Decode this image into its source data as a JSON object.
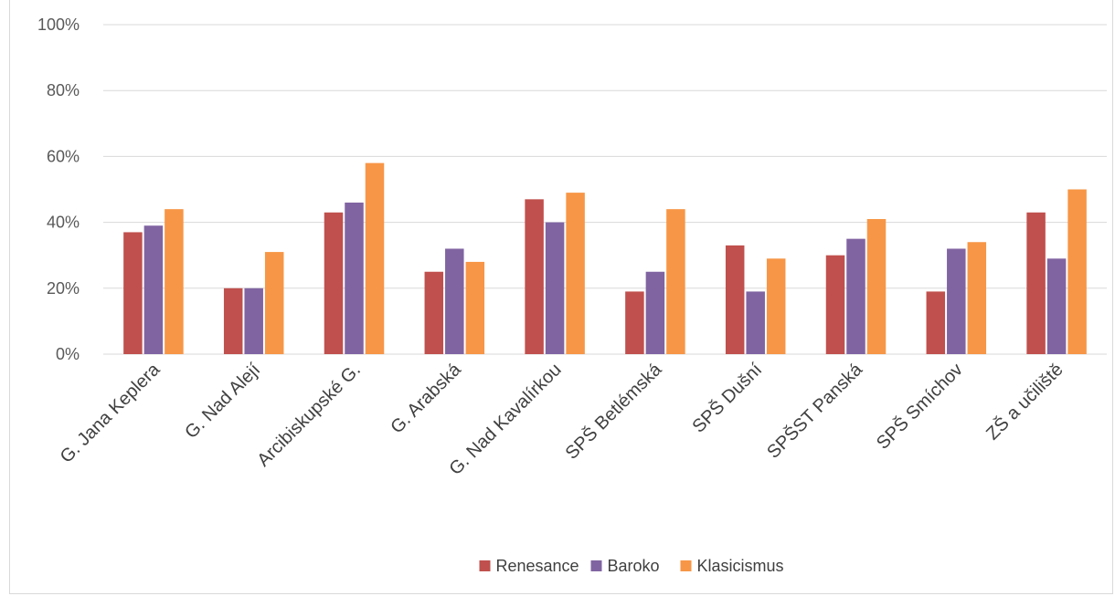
{
  "chart_data": {
    "type": "bar",
    "categories": [
      "G. Jana Keplera",
      "G. Nad Alejí",
      "Arcibiskupské G.",
      "G. Arabská",
      "G. Nad Kavalírkou",
      "SPŠ Betlémská",
      "SPŠ Dušní",
      "SPŠST Panská",
      "SPŠ Smíchov",
      "ZŠ a učiliště"
    ],
    "series": [
      {
        "name": "Renesance",
        "color": "#c0504d",
        "values": [
          37,
          20,
          43,
          25,
          47,
          19,
          33,
          30,
          19,
          43
        ]
      },
      {
        "name": "Baroko",
        "color": "#8064a2",
        "values": [
          39,
          20,
          46,
          32,
          40,
          25,
          19,
          35,
          32,
          29
        ]
      },
      {
        "name": "Klasicismus",
        "color": "#f79646",
        "values": [
          44,
          31,
          58,
          28,
          49,
          44,
          29,
          41,
          34,
          50
        ]
      }
    ],
    "ylim": [
      0,
      100
    ],
    "y_ticks": [
      0,
      20,
      40,
      60,
      80,
      100
    ],
    "y_tick_labels": [
      "0%",
      "20%",
      "40%",
      "60%",
      "80%",
      "100%"
    ],
    "grid": true,
    "legend_position": "bottom",
    "title": "",
    "xlabel": "",
    "ylabel": ""
  }
}
